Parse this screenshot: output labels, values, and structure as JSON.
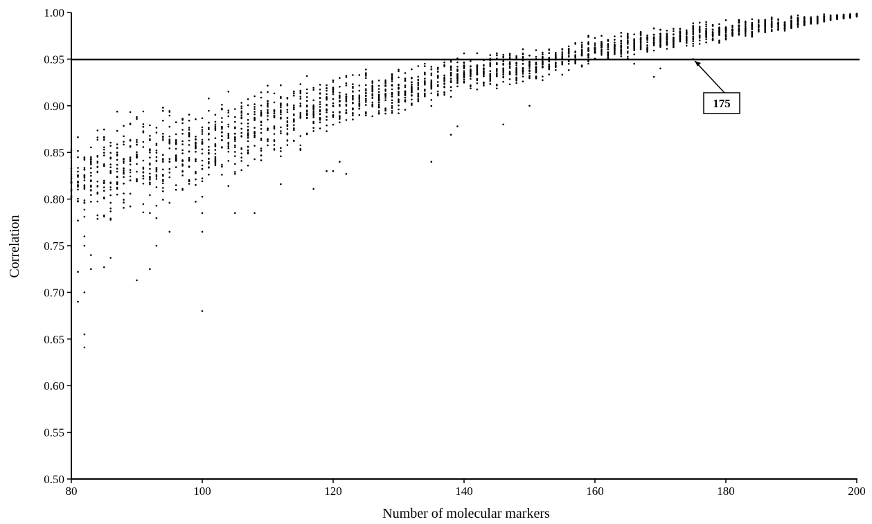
{
  "chart_data": {
    "type": "scatter",
    "title": "",
    "xlabel": "Number of molecular markers",
    "ylabel": "Correlation",
    "xlim": [
      80,
      200
    ],
    "ylim": [
      0.5,
      1.0
    ],
    "x_ticks": [
      "80",
      "100",
      "120",
      "140",
      "160",
      "180",
      "200"
    ],
    "y_ticks": [
      "0.50",
      "0.55",
      "0.60",
      "0.65",
      "0.70",
      "0.75",
      "0.80",
      "0.85",
      "0.90",
      "0.95",
      "1.00"
    ],
    "reference_line": {
      "y": 0.95
    },
    "annotation": {
      "text": "175",
      "x": 175,
      "y": 0.95
    },
    "grid": false,
    "legend": "none",
    "marker_color": "#000000",
    "envelope": [
      {
        "x": 80,
        "min": 0.75,
        "max": 0.88
      },
      {
        "x": 90,
        "min": 0.77,
        "max": 0.91
      },
      {
        "x": 100,
        "min": 0.79,
        "max": 0.92
      },
      {
        "x": 110,
        "min": 0.83,
        "max": 0.935
      },
      {
        "x": 120,
        "min": 0.86,
        "max": 0.94
      },
      {
        "x": 130,
        "min": 0.88,
        "max": 0.95
      },
      {
        "x": 140,
        "min": 0.91,
        "max": 0.96
      },
      {
        "x": 150,
        "min": 0.92,
        "max": 0.965
      },
      {
        "x": 160,
        "min": 0.94,
        "max": 0.98
      },
      {
        "x": 170,
        "min": 0.955,
        "max": 0.988
      },
      {
        "x": 180,
        "min": 0.965,
        "max": 0.995
      },
      {
        "x": 190,
        "min": 0.98,
        "max": 0.998
      },
      {
        "x": 200,
        "min": 0.995,
        "max": 1.0
      }
    ],
    "outliers": [
      [
        82,
        0.641
      ],
      [
        82,
        0.655
      ],
      [
        81,
        0.69
      ],
      [
        82,
        0.7
      ],
      [
        81,
        0.722
      ],
      [
        83,
        0.725
      ],
      [
        83,
        0.74
      ],
      [
        82,
        0.75
      ],
      [
        82,
        0.76
      ],
      [
        85,
        0.727
      ],
      [
        86,
        0.737
      ],
      [
        90,
        0.713
      ],
      [
        92,
        0.725
      ],
      [
        93,
        0.75
      ],
      [
        95,
        0.765
      ],
      [
        100,
        0.68
      ],
      [
        100,
        0.765
      ],
      [
        100,
        0.785
      ],
      [
        105,
        0.785
      ],
      [
        108,
        0.785
      ],
      [
        112,
        0.816
      ],
      [
        117,
        0.811
      ],
      [
        119,
        0.83
      ],
      [
        120,
        0.83
      ],
      [
        121,
        0.84
      ],
      [
        122,
        0.827
      ],
      [
        135,
        0.84
      ],
      [
        138,
        0.869
      ],
      [
        139,
        0.878
      ],
      [
        146,
        0.88
      ],
      [
        150,
        0.9
      ],
      [
        169,
        0.931
      ],
      [
        175,
        0.95
      ],
      [
        166,
        0.945
      ],
      [
        170,
        0.94
      ]
    ],
    "points_per_x": 20
  }
}
